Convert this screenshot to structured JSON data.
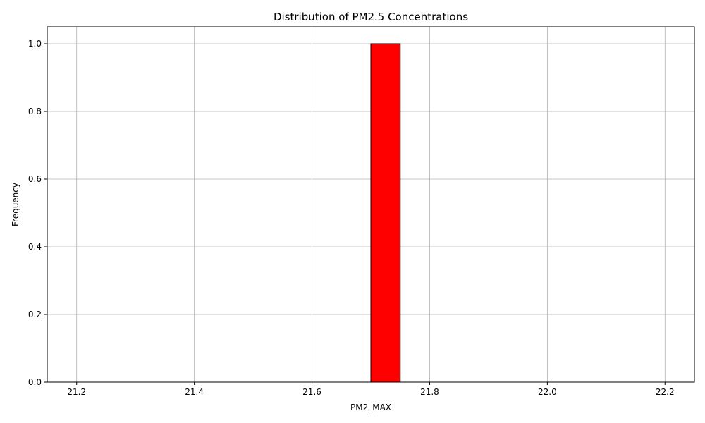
{
  "chart_data": {
    "type": "bar",
    "title": "Distribution of PM2.5 Concentrations",
    "xlabel": "PM2_MAX",
    "ylabel": "Frequency",
    "xlim": [
      21.15,
      22.25
    ],
    "ylim": [
      0,
      1.05
    ],
    "x_ticks": [
      21.2,
      21.4,
      21.6,
      21.8,
      22.0,
      22.2
    ],
    "x_tick_labels": [
      "21.2",
      "21.4",
      "21.6",
      "21.8",
      "22.0",
      "22.2"
    ],
    "y_ticks": [
      0.0,
      0.2,
      0.4,
      0.6,
      0.8,
      1.0
    ],
    "y_tick_labels": [
      "0.0",
      "0.2",
      "0.4",
      "0.6",
      "0.8",
      "1.0"
    ],
    "bins": [
      {
        "x0": 21.2,
        "x1": 21.25,
        "count": 0
      },
      {
        "x0": 21.25,
        "x1": 21.3,
        "count": 0
      },
      {
        "x0": 21.3,
        "x1": 21.35,
        "count": 0
      },
      {
        "x0": 21.35,
        "x1": 21.4,
        "count": 0
      },
      {
        "x0": 21.4,
        "x1": 21.45,
        "count": 0
      },
      {
        "x0": 21.45,
        "x1": 21.5,
        "count": 0
      },
      {
        "x0": 21.5,
        "x1": 21.55,
        "count": 0
      },
      {
        "x0": 21.55,
        "x1": 21.6,
        "count": 0
      },
      {
        "x0": 21.6,
        "x1": 21.65,
        "count": 0
      },
      {
        "x0": 21.65,
        "x1": 21.7,
        "count": 0
      },
      {
        "x0": 21.7,
        "x1": 21.75,
        "count": 1
      },
      {
        "x0": 21.75,
        "x1": 21.8,
        "count": 0
      },
      {
        "x0": 21.8,
        "x1": 21.85,
        "count": 0
      },
      {
        "x0": 21.85,
        "x1": 21.9,
        "count": 0
      },
      {
        "x0": 21.9,
        "x1": 21.95,
        "count": 0
      },
      {
        "x0": 21.95,
        "x1": 22.0,
        "count": 0
      },
      {
        "x0": 22.0,
        "x1": 22.05,
        "count": 0
      },
      {
        "x0": 22.05,
        "x1": 22.1,
        "count": 0
      },
      {
        "x0": 22.1,
        "x1": 22.15,
        "count": 0
      },
      {
        "x0": 22.15,
        "x1": 22.2,
        "count": 0
      }
    ],
    "grid": true,
    "colors": {
      "bar_fill": "#ff0000",
      "bar_edge": "#000000",
      "grid": "#b0b0b0",
      "axes": "#000000"
    }
  }
}
